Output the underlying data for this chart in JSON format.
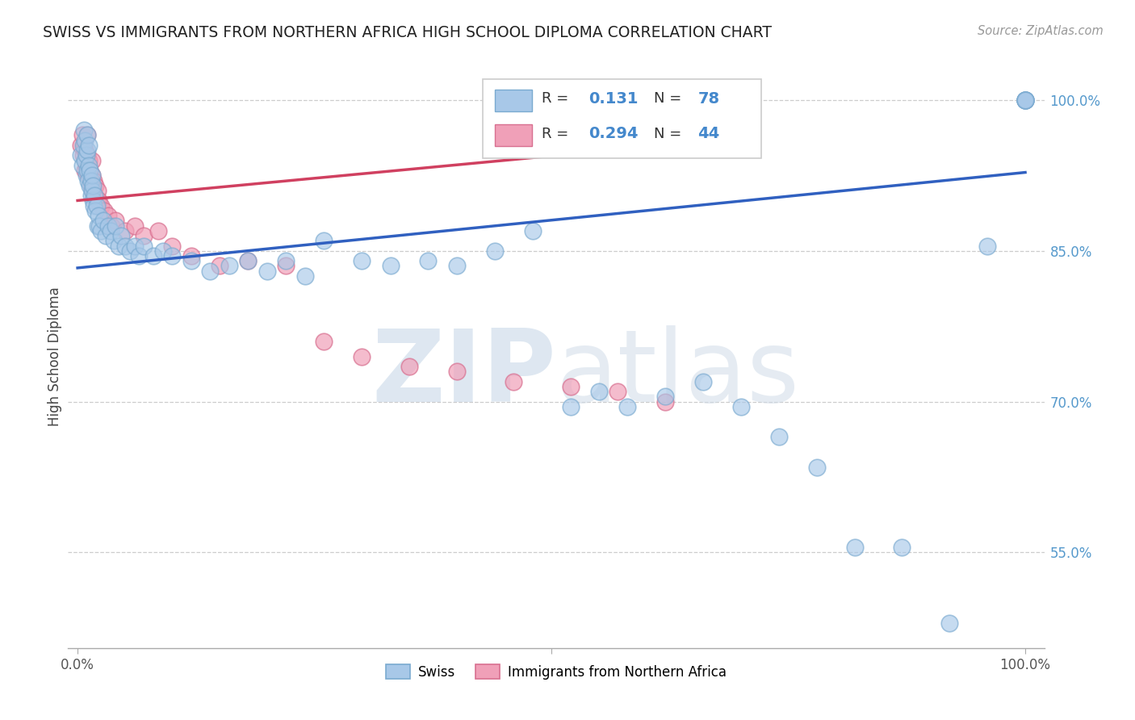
{
  "title": "SWISS VS IMMIGRANTS FROM NORTHERN AFRICA HIGH SCHOOL DIPLOMA CORRELATION CHART",
  "source": "Source: ZipAtlas.com",
  "ylabel": "High School Diploma",
  "xlim": [
    -0.01,
    1.02
  ],
  "ylim": [
    0.455,
    1.035
  ],
  "y_ticks_right": [
    1.0,
    0.85,
    0.7,
    0.55
  ],
  "y_tick_labels_right": [
    "100.0%",
    "85.0%",
    "70.0%",
    "55.0%"
  ],
  "legend_swiss_R": "0.131",
  "legend_swiss_N": "78",
  "legend_imm_R": "0.294",
  "legend_imm_N": "44",
  "swiss_color": "#a8c8e8",
  "swiss_edge_color": "#7aaad0",
  "imm_color": "#f0a0b8",
  "imm_edge_color": "#d87090",
  "swiss_line_color": "#3060c0",
  "imm_line_color": "#d04060",
  "watermark_zip": "ZIP",
  "watermark_atlas": "atlas",
  "swiss_x": [
    0.003,
    0.005,
    0.006,
    0.007,
    0.008,
    0.008,
    0.009,
    0.009,
    0.01,
    0.01,
    0.01,
    0.011,
    0.012,
    0.012,
    0.013,
    0.013,
    0.014,
    0.014,
    0.015,
    0.015,
    0.016,
    0.016,
    0.017,
    0.018,
    0.019,
    0.02,
    0.021,
    0.022,
    0.023,
    0.025,
    0.027,
    0.03,
    0.032,
    0.035,
    0.038,
    0.04,
    0.043,
    0.046,
    0.05,
    0.055,
    0.06,
    0.065,
    0.07,
    0.08,
    0.09,
    0.1,
    0.12,
    0.14,
    0.16,
    0.18,
    0.2,
    0.22,
    0.24,
    0.26,
    0.3,
    0.33,
    0.37,
    0.4,
    0.44,
    0.48,
    0.52,
    0.55,
    0.58,
    0.62,
    0.66,
    0.7,
    0.74,
    0.78,
    0.82,
    0.87,
    0.92,
    0.96,
    1.0,
    1.0,
    1.0,
    1.0,
    1.0,
    1.0
  ],
  "swiss_y": [
    0.945,
    0.935,
    0.955,
    0.97,
    0.94,
    0.96,
    0.925,
    0.945,
    0.93,
    0.95,
    0.965,
    0.92,
    0.935,
    0.955,
    0.915,
    0.93,
    0.905,
    0.92,
    0.91,
    0.925,
    0.9,
    0.915,
    0.895,
    0.905,
    0.89,
    0.895,
    0.875,
    0.885,
    0.875,
    0.87,
    0.88,
    0.865,
    0.875,
    0.87,
    0.86,
    0.875,
    0.855,
    0.865,
    0.855,
    0.85,
    0.855,
    0.845,
    0.855,
    0.845,
    0.85,
    0.845,
    0.84,
    0.83,
    0.835,
    0.84,
    0.83,
    0.84,
    0.825,
    0.86,
    0.84,
    0.835,
    0.84,
    0.835,
    0.85,
    0.87,
    0.695,
    0.71,
    0.695,
    0.705,
    0.72,
    0.695,
    0.665,
    0.635,
    0.555,
    0.555,
    0.48,
    0.855,
    1.0,
    1.0,
    1.0,
    1.0,
    1.0,
    1.0
  ],
  "imm_x": [
    0.003,
    0.005,
    0.006,
    0.007,
    0.008,
    0.008,
    0.009,
    0.01,
    0.01,
    0.011,
    0.012,
    0.013,
    0.014,
    0.015,
    0.015,
    0.016,
    0.017,
    0.018,
    0.019,
    0.02,
    0.021,
    0.022,
    0.025,
    0.028,
    0.032,
    0.036,
    0.04,
    0.05,
    0.06,
    0.07,
    0.085,
    0.1,
    0.12,
    0.15,
    0.18,
    0.22,
    0.26,
    0.3,
    0.35,
    0.4,
    0.46,
    0.52,
    0.57,
    0.62
  ],
  "imm_y": [
    0.955,
    0.965,
    0.945,
    0.955,
    0.93,
    0.95,
    0.935,
    0.945,
    0.965,
    0.925,
    0.94,
    0.93,
    0.915,
    0.925,
    0.94,
    0.91,
    0.92,
    0.905,
    0.915,
    0.9,
    0.91,
    0.9,
    0.895,
    0.89,
    0.885,
    0.875,
    0.88,
    0.87,
    0.875,
    0.865,
    0.87,
    0.855,
    0.845,
    0.835,
    0.84,
    0.835,
    0.76,
    0.745,
    0.735,
    0.73,
    0.72,
    0.715,
    0.71,
    0.7
  ],
  "swiss_line_x0": 0.0,
  "swiss_line_y0": 0.833,
  "swiss_line_x1": 1.0,
  "swiss_line_y1": 0.928,
  "imm_line_x0": 0.0,
  "imm_line_y0": 0.9,
  "imm_line_x1": 0.62,
  "imm_line_y1": 0.955
}
